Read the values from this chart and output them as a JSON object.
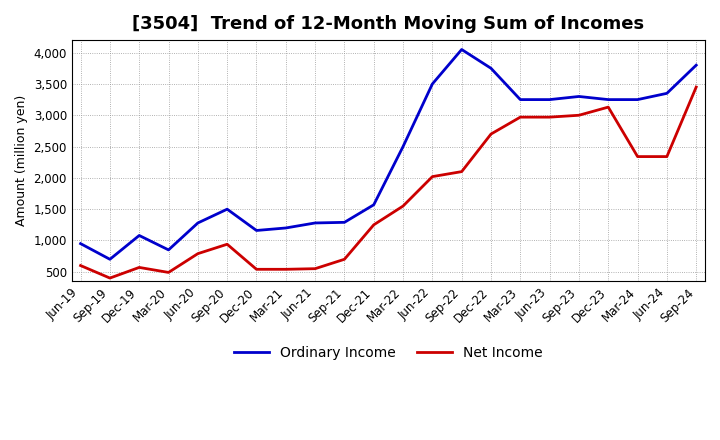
{
  "title": "[3504]  Trend of 12-Month Moving Sum of Incomes",
  "ylabel": "Amount (million yen)",
  "x_labels": [
    "Jun-19",
    "Sep-19",
    "Dec-19",
    "Mar-20",
    "Jun-20",
    "Sep-20",
    "Dec-20",
    "Mar-21",
    "Jun-21",
    "Sep-21",
    "Dec-21",
    "Mar-22",
    "Jun-22",
    "Sep-22",
    "Dec-22",
    "Mar-23",
    "Jun-23",
    "Sep-23",
    "Dec-23",
    "Mar-24",
    "Jun-24",
    "Sep-24"
  ],
  "ordinary_income": [
    950,
    700,
    1080,
    850,
    1280,
    1500,
    1160,
    1200,
    1280,
    1290,
    1570,
    2500,
    3500,
    4050,
    3750,
    3250,
    3250,
    3300,
    3250,
    3250,
    3350,
    3800
  ],
  "net_income": [
    600,
    400,
    570,
    490,
    790,
    940,
    540,
    540,
    550,
    700,
    1250,
    1550,
    2020,
    2100,
    2700,
    2970,
    2970,
    3000,
    3130,
    2340,
    2340,
    3450
  ],
  "ordinary_color": "#0000cc",
  "net_color": "#cc0000",
  "ylim_min": 350,
  "ylim_max": 4200,
  "yticks": [
    500,
    1000,
    1500,
    2000,
    2500,
    3000,
    3500,
    4000
  ],
  "background_color": "#ffffff",
  "grid_color": "#999999",
  "line_width": 2.0,
  "title_fontsize": 13,
  "legend_fontsize": 10,
  "tick_fontsize": 8.5
}
